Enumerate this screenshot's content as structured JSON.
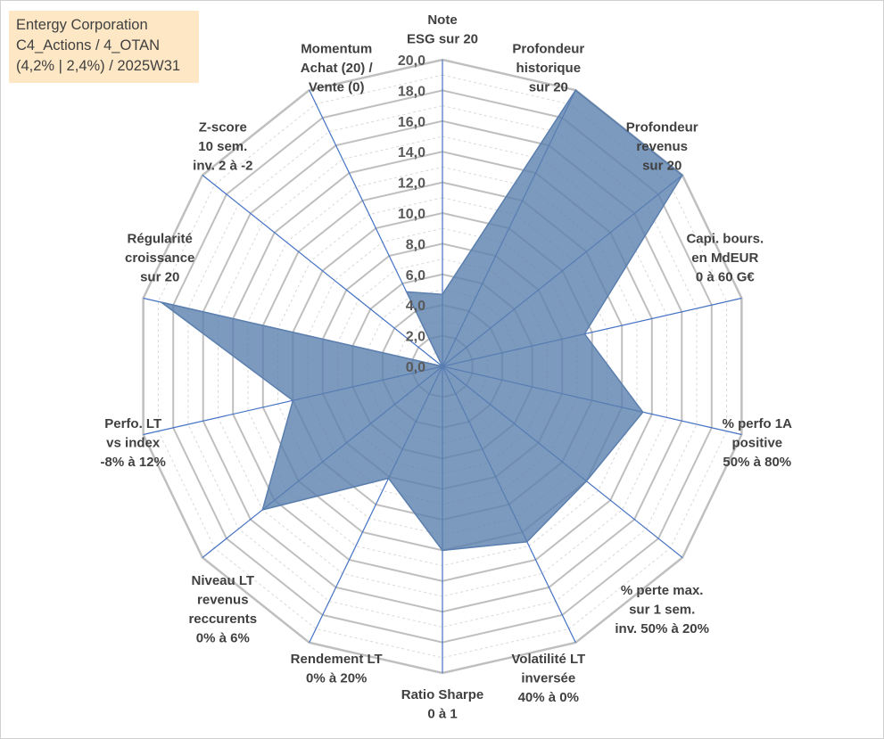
{
  "title_box": {
    "line1": "Entergy Corporation",
    "line2": "C4_Actions / 4_OTAN",
    "line3": "(4,2% | 2,4%) / 2025W31"
  },
  "colors": {
    "fill": "#5b7fae",
    "fill_opacity": 0.8,
    "axis_line": "#4472c4",
    "grid_major": "#bfbfbf",
    "grid_minor": "#d9d9d9",
    "title_bg": "#fde7c4"
  },
  "chart_data": {
    "type": "radar",
    "rmin": 0,
    "rmax": 20,
    "major_step": 2,
    "minor_step": 1,
    "tick_labels": [
      "0,0",
      "2,0",
      "4,0",
      "6,0",
      "8,0",
      "10,0",
      "12,0",
      "14,0",
      "16,0",
      "18,0",
      "20,0"
    ],
    "categories": [
      {
        "lines": [
          "Note",
          "ESG sur 20"
        ]
      },
      {
        "lines": [
          "Profondeur",
          "historique",
          "sur 20"
        ]
      },
      {
        "lines": [
          "Profondeur",
          "revenus",
          "sur 20"
        ]
      },
      {
        "lines": [
          "Capi. bours.",
          "en MdEUR",
          "0 à 60 G€"
        ]
      },
      {
        "lines": [
          "% perfo 1A",
          "positive",
          "50% à 80%"
        ]
      },
      {
        "lines": [
          "% perte max.",
          "sur 1 sem.",
          "inv. 50% à 20%"
        ]
      },
      {
        "lines": [
          "Volatilité LT",
          "inversée",
          "40% à 0%"
        ]
      },
      {
        "lines": [
          "Ratio Sharpe",
          "0 à 1"
        ]
      },
      {
        "lines": [
          "Rendement LT",
          "0% à 20%"
        ]
      },
      {
        "lines": [
          "Niveau LT",
          "revenus",
          "reccurents",
          "0% à 6%"
        ]
      },
      {
        "lines": [
          "Perfo. LT",
          "vs index",
          "-8% à 12%"
        ]
      },
      {
        "lines": [
          "Régularité",
          "croissance",
          "sur 20"
        ]
      },
      {
        "lines": [
          "Z-score",
          "10 sem.",
          "inv. 2 à -2"
        ]
      },
      {
        "lines": [
          "Momentum",
          "Achat (20) /",
          "Vente (0)"
        ]
      }
    ],
    "series": [
      {
        "values": [
          4.7,
          20.0,
          20.0,
          9.5,
          13.4,
          12.0,
          12.7,
          12.0,
          8.1,
          15.0,
          10.0,
          18.8,
          0.0,
          5.4
        ]
      }
    ]
  }
}
